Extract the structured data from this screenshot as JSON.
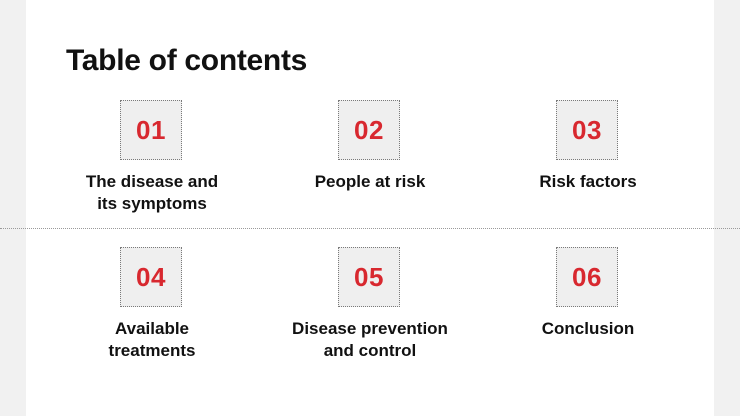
{
  "slide": {
    "title": "Table of contents",
    "accent_color": "#d8282f",
    "items": [
      {
        "number": "01",
        "label": "The disease and its symptoms"
      },
      {
        "number": "02",
        "label": "People at risk"
      },
      {
        "number": "03",
        "label": "Risk factors"
      },
      {
        "number": "04",
        "label": "Available treatments"
      },
      {
        "number": "05",
        "label": "Disease prevention and control"
      },
      {
        "number": "06",
        "label": "Conclusion"
      }
    ]
  }
}
